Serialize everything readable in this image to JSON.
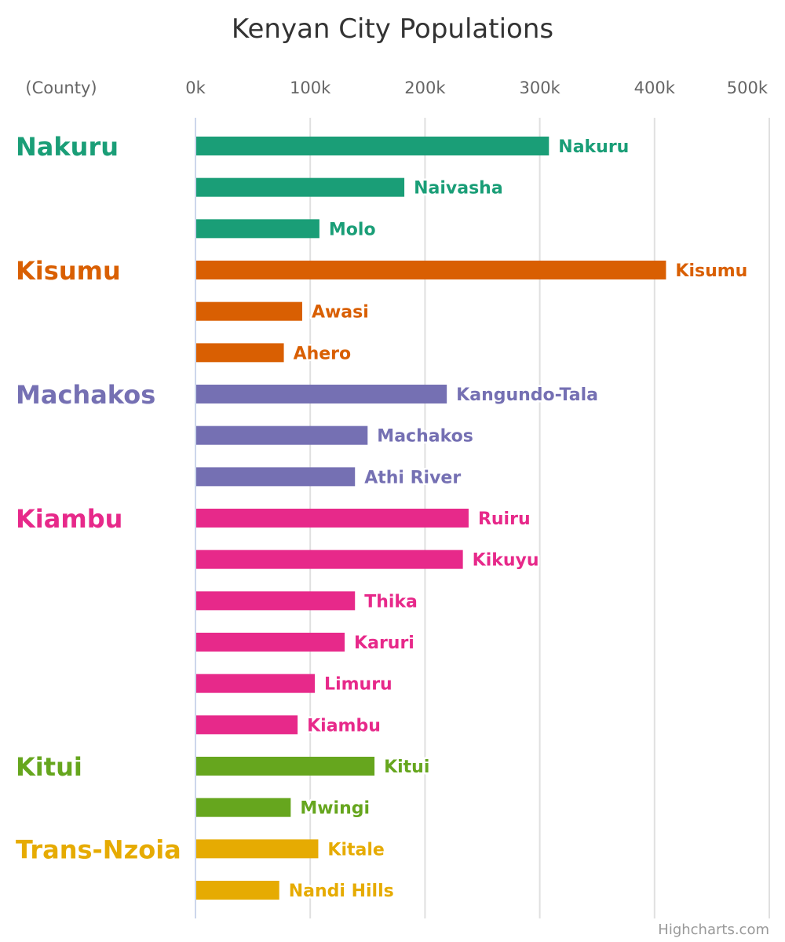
{
  "chart_data": {
    "type": "bar",
    "title": "Kenyan City Populations",
    "category_axis_title": "(County)",
    "xlim": [
      0,
      500000
    ],
    "ticks": [
      {
        "value": 0,
        "label": "0k"
      },
      {
        "value": 100000,
        "label": "100k"
      },
      {
        "value": 200000,
        "label": "200k"
      },
      {
        "value": 300000,
        "label": "300k"
      },
      {
        "value": 400000,
        "label": "400k"
      },
      {
        "value": 500000,
        "label": "500k"
      }
    ],
    "grid": true,
    "data_labels": true,
    "groups": [
      {
        "name": "Nakuru",
        "color": "#1a9e77",
        "cities": [
          {
            "name": "Nakuru",
            "value": 308000
          },
          {
            "name": "Naivasha",
            "value": 182000
          },
          {
            "name": "Molo",
            "value": 108000
          }
        ]
      },
      {
        "name": "Kisumu",
        "color": "#d95f02",
        "cities": [
          {
            "name": "Kisumu",
            "value": 410000
          },
          {
            "name": "Awasi",
            "value": 93000
          },
          {
            "name": "Ahero",
            "value": 77000
          }
        ]
      },
      {
        "name": "Machakos",
        "color": "#7570b3",
        "cities": [
          {
            "name": "Kangundo-Tala",
            "value": 219000
          },
          {
            "name": "Machakos",
            "value": 150000
          },
          {
            "name": "Athi River",
            "value": 139000
          }
        ]
      },
      {
        "name": "Kiambu",
        "color": "#e7298a",
        "cities": [
          {
            "name": "Ruiru",
            "value": 238000
          },
          {
            "name": "Kikuyu",
            "value": 233000
          },
          {
            "name": "Thika",
            "value": 139000
          },
          {
            "name": "Karuri",
            "value": 130000
          },
          {
            "name": "Limuru",
            "value": 104000
          },
          {
            "name": "Kiambu",
            "value": 89000
          }
        ]
      },
      {
        "name": "Kitui",
        "color": "#66a61e",
        "cities": [
          {
            "name": "Kitui",
            "value": 156000
          },
          {
            "name": "Mwingi",
            "value": 83000
          }
        ]
      },
      {
        "name": "Trans-Nzoia",
        "color": "#e6ab02",
        "cities": [
          {
            "name": "Kitale",
            "value": 107000
          },
          {
            "name": "Nandi Hills",
            "value": 73000
          }
        ]
      }
    ]
  },
  "credits": "Highcharts.com"
}
